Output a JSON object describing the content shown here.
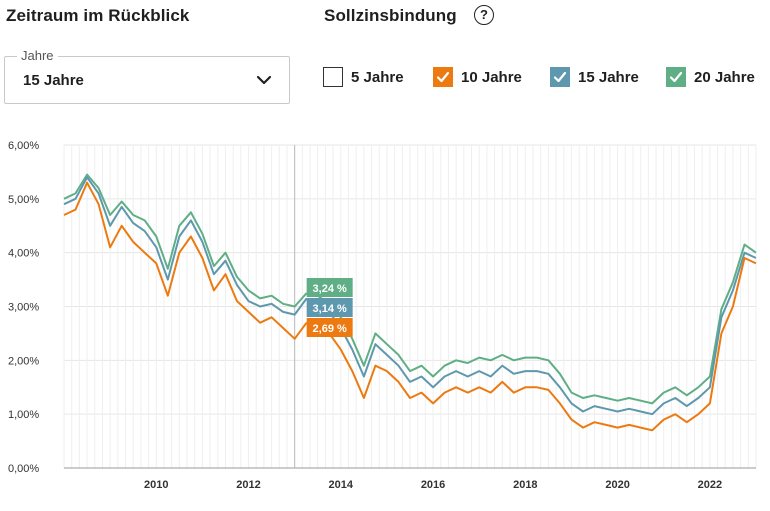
{
  "header": {
    "left_title": "Zeitraum im Rückblick",
    "right_title": "Sollzinsbindung",
    "help_glyph": "?"
  },
  "period_select": {
    "label": "Jahre",
    "value": "15 Jahre"
  },
  "checkboxes": [
    {
      "label": "5 Jahre",
      "checked": false,
      "color": "#ffffff"
    },
    {
      "label": "10 Jahre",
      "checked": true,
      "color": "#ec7a10"
    },
    {
      "label": "15 Jahre",
      "checked": true,
      "color": "#5e98ae"
    },
    {
      "label": "20 Jahre",
      "checked": true,
      "color": "#5fae86"
    }
  ],
  "chart_data": {
    "type": "line",
    "y_ticks": [
      "0,00%",
      "1,00%",
      "2,00%",
      "3,00%",
      "4,00%",
      "5,00%",
      "6,00%"
    ],
    "x_ticks": [
      "2010",
      "2012",
      "2014",
      "2016",
      "2018",
      "2020",
      "2022"
    ],
    "ylim": [
      0,
      6
    ],
    "xlim": [
      2008.0,
      2023.0
    ],
    "grid": true,
    "hover_year": 2013.0,
    "tooltips": [
      {
        "text": "3,24 %",
        "color": "#5fae86"
      },
      {
        "text": "3,14 %",
        "color": "#5e98ae"
      },
      {
        "text": "2,69 %",
        "color": "#ec7a10"
      }
    ],
    "x": [
      2008.0,
      2008.25,
      2008.5,
      2008.75,
      2009.0,
      2009.25,
      2009.5,
      2009.75,
      2010.0,
      2010.25,
      2010.5,
      2010.75,
      2011.0,
      2011.25,
      2011.5,
      2011.75,
      2012.0,
      2012.25,
      2012.5,
      2012.75,
      2013.0,
      2013.25,
      2013.5,
      2013.75,
      2014.0,
      2014.25,
      2014.5,
      2014.75,
      2015.0,
      2015.25,
      2015.5,
      2015.75,
      2016.0,
      2016.25,
      2016.5,
      2016.75,
      2017.0,
      2017.25,
      2017.5,
      2017.75,
      2018.0,
      2018.25,
      2018.5,
      2018.75,
      2019.0,
      2019.25,
      2019.5,
      2019.75,
      2020.0,
      2020.25,
      2020.5,
      2020.75,
      2021.0,
      2021.25,
      2021.5,
      2021.75,
      2022.0,
      2022.25,
      2022.5,
      2022.75,
      2023.0
    ],
    "series": [
      {
        "name": "10 Jahre",
        "color": "#ec7a10",
        "values": [
          4.7,
          4.8,
          5.3,
          4.9,
          4.1,
          4.5,
          4.2,
          4.0,
          3.8,
          3.2,
          4.0,
          4.3,
          3.9,
          3.3,
          3.6,
          3.1,
          2.9,
          2.7,
          2.8,
          2.6,
          2.4,
          2.69,
          2.7,
          2.5,
          2.2,
          1.8,
          1.3,
          1.9,
          1.8,
          1.6,
          1.3,
          1.4,
          1.2,
          1.4,
          1.5,
          1.4,
          1.5,
          1.4,
          1.6,
          1.4,
          1.5,
          1.5,
          1.45,
          1.2,
          0.9,
          0.75,
          0.85,
          0.8,
          0.75,
          0.8,
          0.75,
          0.7,
          0.9,
          1.0,
          0.85,
          1.0,
          1.2,
          2.5,
          3.0,
          3.9,
          3.8
        ]
      },
      {
        "name": "15 Jahre",
        "color": "#5e98ae",
        "values": [
          4.9,
          5.0,
          5.4,
          5.1,
          4.5,
          4.85,
          4.55,
          4.4,
          4.1,
          3.5,
          4.3,
          4.6,
          4.2,
          3.6,
          3.85,
          3.4,
          3.1,
          3.0,
          3.05,
          2.9,
          2.85,
          3.14,
          3.1,
          2.9,
          2.6,
          2.2,
          1.7,
          2.3,
          2.1,
          1.9,
          1.6,
          1.7,
          1.5,
          1.7,
          1.8,
          1.7,
          1.8,
          1.7,
          1.9,
          1.75,
          1.8,
          1.8,
          1.75,
          1.5,
          1.2,
          1.05,
          1.15,
          1.1,
          1.05,
          1.1,
          1.05,
          1.0,
          1.2,
          1.3,
          1.15,
          1.3,
          1.5,
          2.8,
          3.3,
          4.0,
          3.9
        ]
      },
      {
        "name": "20 Jahre",
        "color": "#5fae86",
        "values": [
          5.0,
          5.1,
          5.45,
          5.2,
          4.7,
          4.95,
          4.7,
          4.6,
          4.3,
          3.7,
          4.5,
          4.75,
          4.35,
          3.75,
          4.0,
          3.55,
          3.3,
          3.15,
          3.2,
          3.05,
          3.0,
          3.24,
          3.2,
          3.05,
          2.8,
          2.4,
          1.9,
          2.5,
          2.3,
          2.1,
          1.8,
          1.9,
          1.7,
          1.9,
          2.0,
          1.95,
          2.05,
          2.0,
          2.1,
          2.0,
          2.05,
          2.05,
          2.0,
          1.75,
          1.4,
          1.3,
          1.35,
          1.3,
          1.25,
          1.3,
          1.25,
          1.2,
          1.4,
          1.5,
          1.35,
          1.5,
          1.7,
          2.95,
          3.45,
          4.15,
          4.0
        ]
      }
    ]
  }
}
